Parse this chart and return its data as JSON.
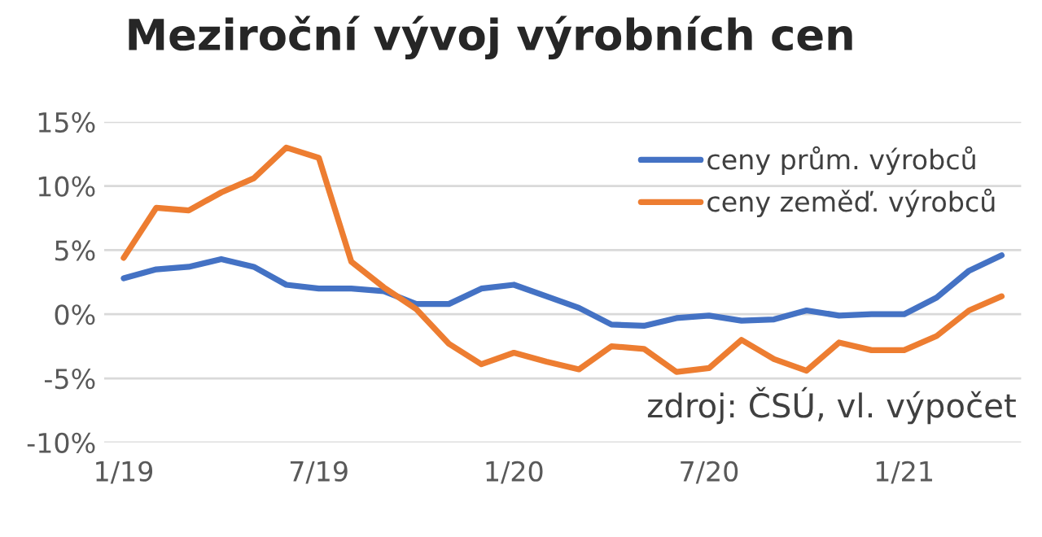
{
  "chart_data": {
    "type": "line",
    "title": "Meziroční vývoj výrobních cen",
    "categories": [
      "1/19",
      null,
      null,
      null,
      null,
      null,
      "7/19",
      null,
      null,
      null,
      null,
      null,
      "1/20",
      null,
      null,
      null,
      null,
      null,
      "7/20",
      null,
      null,
      null,
      null,
      null,
      "1/21",
      null,
      null,
      null
    ],
    "series": [
      {
        "name": "ceny prům. výrobců",
        "color": "#4472c4",
        "values": [
          2.8,
          3.5,
          3.7,
          4.3,
          3.7,
          2.3,
          2.0,
          2.0,
          1.8,
          0.8,
          0.8,
          2.0,
          2.3,
          1.4,
          0.5,
          -0.8,
          -0.9,
          -0.3,
          -0.1,
          -0.5,
          -0.4,
          0.3,
          -0.1,
          0.0,
          0.0,
          1.3,
          3.4,
          4.6
        ]
      },
      {
        "name": "ceny zeměď. výrobců",
        "color": "#ed7d31",
        "values": [
          4.4,
          8.3,
          8.1,
          9.5,
          10.6,
          13.0,
          12.2,
          4.1,
          2.1,
          0.4,
          -2.3,
          -3.9,
          -3.0,
          -3.7,
          -4.3,
          -2.5,
          -2.7,
          -4.5,
          -4.2,
          -2.0,
          -3.5,
          -4.4,
          -2.2,
          -2.8,
          -2.8,
          -1.7,
          0.3,
          1.4
        ]
      }
    ],
    "ylim": [
      -10,
      15
    ],
    "yticks": [
      {
        "value": -10,
        "label": "-10%"
      },
      {
        "value": -5,
        "label": "-5%"
      },
      {
        "value": 0,
        "label": "0%"
      },
      {
        "value": 5,
        "label": "5%"
      },
      {
        "value": 10,
        "label": "10%"
      },
      {
        "value": 15,
        "label": "15%"
      }
    ],
    "grid": "y",
    "legend": "top right",
    "marker": "none",
    "line_style": "solid",
    "annotations": [
      "zdroj: ČSÚ, vl. výpočet"
    ]
  }
}
